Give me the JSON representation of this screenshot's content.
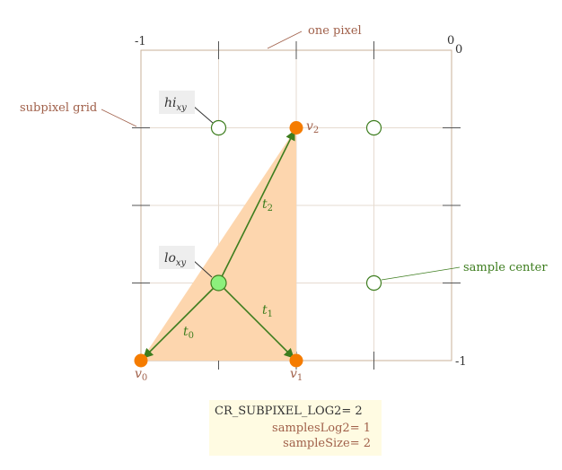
{
  "labels": {
    "top_left": "-1",
    "top_right_a": "0",
    "top_right_b": "0",
    "bottom_right": "-1",
    "one_pixel": "one pixel",
    "subpixel_grid": "subpixel grid",
    "sample_center": "sample center",
    "hi_xy": "hi",
    "hi_sub": "xy",
    "lo_xy": "lo",
    "lo_sub": "xy",
    "v0": "v",
    "v0_sub": "0",
    "v1": "v",
    "v1_sub": "1",
    "v2": "v",
    "v2_sub": "2",
    "t0": "t",
    "t0_sub": "0",
    "t1": "t",
    "t1_sub": "1",
    "t2": "t",
    "t2_sub": "2"
  },
  "params": {
    "line1": "CR_SUBPIXEL_LOG2= 2",
    "line2": "samplesLog2= 1",
    "line3": "sampleSize= 2"
  },
  "colors": {
    "grid": "#e3d7cb",
    "frame": "#c9b19a",
    "triangle_fill": "#fdd6ae",
    "vertex": "#f57c00",
    "arrow": "#3d7d1e",
    "sample_stroke": "#3d7d1e",
    "lo_fill": "#8cf07c",
    "brown_text": "#a0604a",
    "label_box": "#eeeeee"
  }
}
